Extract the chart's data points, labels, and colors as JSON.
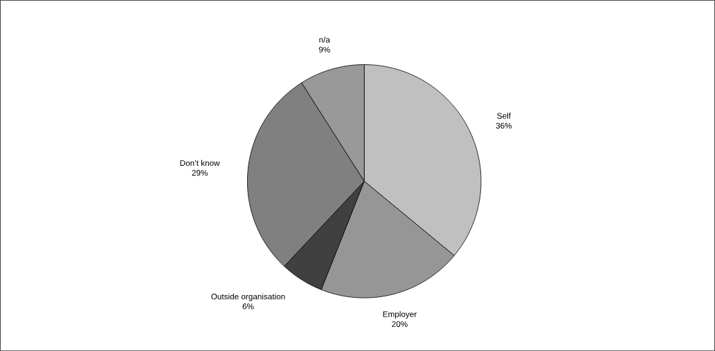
{
  "chart_data": {
    "type": "pie",
    "categories": [
      "Self",
      "Employer",
      "Outside organisation",
      "Don’t know",
      "n/a"
    ],
    "values": [
      36,
      20,
      6,
      29,
      9
    ],
    "value_labels": [
      "36%",
      "20%",
      "6%",
      "29%",
      "9%"
    ],
    "colors": [
      "#c0c0c0",
      "#969696",
      "#404040",
      "#808080",
      "#999999"
    ]
  }
}
